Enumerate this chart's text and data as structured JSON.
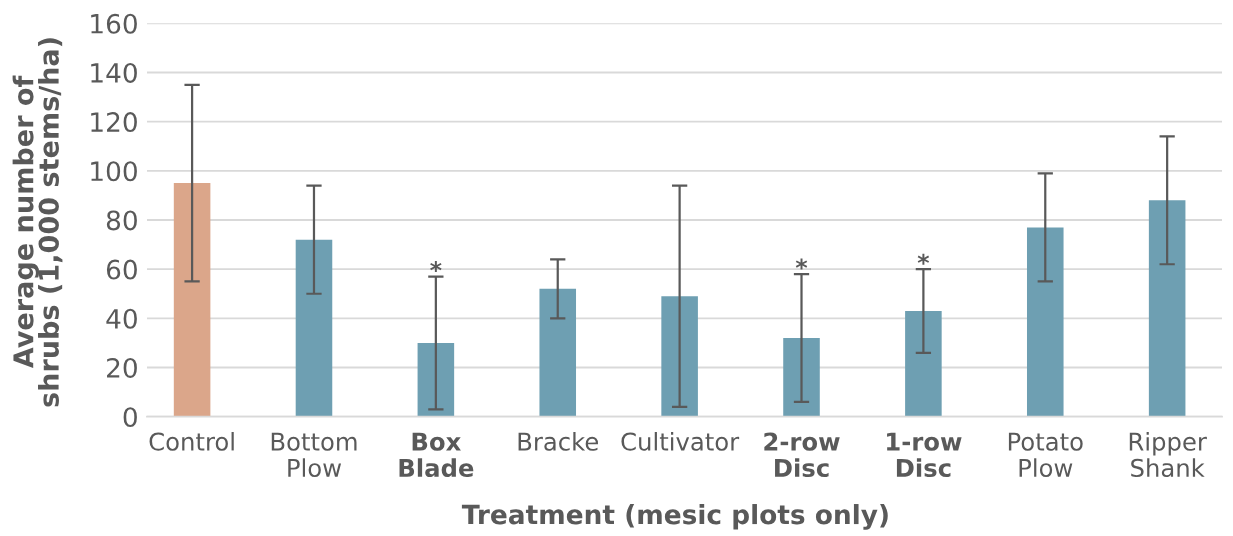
{
  "chart_data": {
    "type": "bar",
    "xlabel": "Treatment (mesic plots only)",
    "ylabel": "Average number of\nshrubs (1,000 stems/ha)",
    "categories": [
      "Control",
      "Bottom Plow",
      "Box Blade",
      "Bracke",
      "Cultivator",
      "2-row Disc",
      "1-row Disc",
      "Potato Plow",
      "Ripper Shank"
    ],
    "values": [
      95,
      72,
      30,
      52,
      49,
      32,
      43,
      77,
      88
    ],
    "errors": [
      40,
      22,
      27,
      12,
      45,
      26,
      17,
      22,
      26
    ],
    "value_labels": [
      null,
      null,
      "*",
      null,
      null,
      "*",
      "*",
      null,
      null
    ],
    "colors": [
      "#dba68a",
      "#6e9fb2",
      "#6e9fb2",
      "#6e9fb2",
      "#6e9fb2",
      "#6e9fb2",
      "#6e9fb2",
      "#6e9fb2",
      "#6e9fb2"
    ],
    "ylim": [
      0,
      160
    ],
    "yticks": [
      0,
      20,
      40,
      60,
      80,
      100,
      120,
      140,
      160
    ],
    "grid": "y"
  }
}
